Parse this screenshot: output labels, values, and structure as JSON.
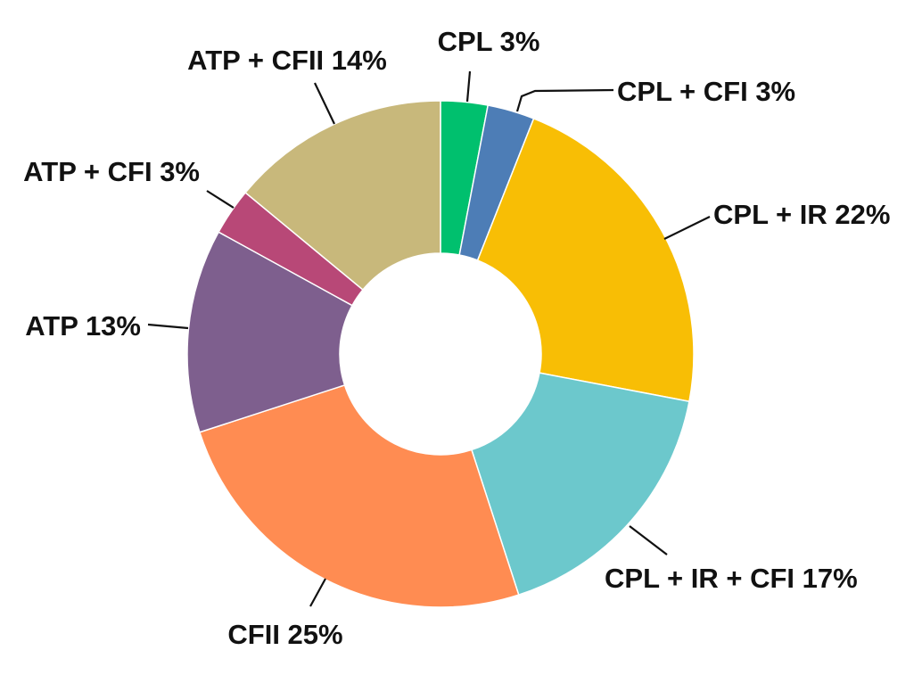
{
  "chart_data": {
    "type": "pie",
    "variant": "donut",
    "title": "",
    "slices": [
      {
        "name": "CPL",
        "value": 3,
        "color": "#00C06E",
        "label": "CPL 3%"
      },
      {
        "name": "CPL + CFI",
        "value": 3,
        "color": "#4D7DB6",
        "label": "CPL + CFI 3%"
      },
      {
        "name": "CPL + IR",
        "value": 22,
        "color": "#F8BE05",
        "label": "CPL + IR 22%"
      },
      {
        "name": "CPL + IR + CFI",
        "value": 17,
        "color": "#6CC8CC",
        "label": "CPL + IR + CFI 17%"
      },
      {
        "name": "CFII",
        "value": 25,
        "color": "#FF8C52",
        "label": "CFII 25%"
      },
      {
        "name": "ATP",
        "value": 13,
        "color": "#7E5F8E",
        "label": "ATP 13%"
      },
      {
        "name": "ATP + CFI",
        "value": 3,
        "color": "#B84877",
        "label": "ATP + CFI 3%"
      },
      {
        "name": "ATP + CFII",
        "value": 14,
        "color": "#C8B87B",
        "label": "ATP + CFII 14%"
      }
    ],
    "legend": "none",
    "labels": "outside-with-leader-lines"
  }
}
